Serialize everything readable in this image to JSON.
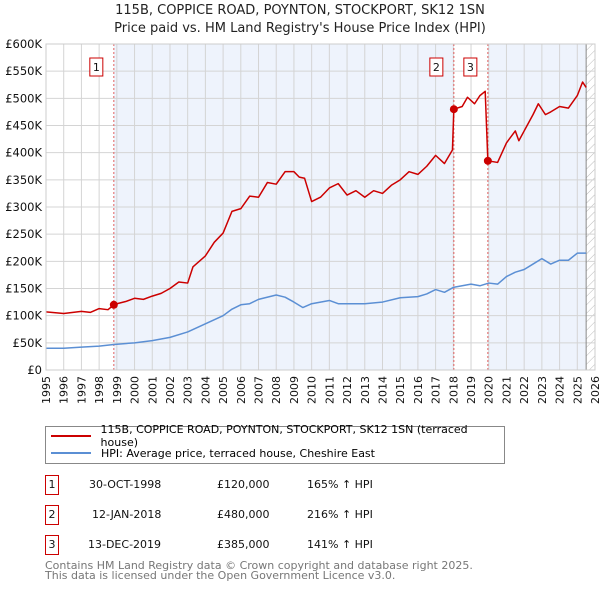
{
  "title": "115B, COPPICE ROAD, POYNTON, STOCKPORT, SK12 1SN",
  "subtitle": "Price paid vs. HM Land Registry's House Price Index (HPI)",
  "chart_data": {
    "type": "line",
    "title": "115B, COPPICE ROAD, POYNTON, STOCKPORT, SK12 1SN",
    "subtitle": "Price paid vs. HM Land Registry's House Price Index (HPI)",
    "xlim": [
      1995,
      2026
    ],
    "ylim": [
      0,
      600000
    ],
    "x_ticks": [
      "1995",
      "1996",
      "1997",
      "1998",
      "1999",
      "2000",
      "2001",
      "2002",
      "2003",
      "2004",
      "2005",
      "2006",
      "2007",
      "2008",
      "2009",
      "2010",
      "2011",
      "2012",
      "2013",
      "2014",
      "2015",
      "2016",
      "2017",
      "2018",
      "2019",
      "2020",
      "2021",
      "2022",
      "2023",
      "2024",
      "2025",
      "2026"
    ],
    "y_ticks": [
      "£0",
      "£50K",
      "£100K",
      "£150K",
      "£200K",
      "£250K",
      "£300K",
      "£350K",
      "£400K",
      "£450K",
      "£500K",
      "£550K",
      "£600K"
    ],
    "grid": true,
    "colors": {
      "property": "#cc0000",
      "hpi": "#5b8fd4",
      "shade": "#eef3fc"
    },
    "series": [
      {
        "name": "115B, COPPICE ROAD, POYNTON, STOCKPORT, SK12 1SN (terraced house)",
        "x": [
          1995,
          1996,
          1997,
          1997.5,
          1998,
          1998.5,
          1998.83,
          1999,
          1999.5,
          2000,
          2000.5,
          2001,
          2001.5,
          2002,
          2002.5,
          2003,
          2003.3,
          2004,
          2004.5,
          2005,
          2005.5,
          2006,
          2006.5,
          2007,
          2007.5,
          2008,
          2008.5,
          2009,
          2009.3,
          2009.6,
          2010,
          2010.5,
          2011,
          2011.5,
          2012,
          2012.5,
          2013,
          2013.5,
          2014,
          2014.5,
          2015,
          2015.5,
          2016,
          2016.5,
          2017,
          2017.5,
          2017.95,
          2018.03,
          2018.5,
          2018.8,
          2019.2,
          2019.5,
          2019.8,
          2019.95,
          2020.5,
          2021,
          2021.5,
          2021.7,
          2022,
          2022.5,
          2022.8,
          2023.2,
          2023.5,
          2024,
          2024.5,
          2025,
          2025.3,
          2025.5
        ],
        "values": [
          107000,
          104000,
          108000,
          106000,
          113000,
          111000,
          120000,
          122000,
          126000,
          132000,
          130000,
          136000,
          141000,
          150000,
          162000,
          160000,
          190000,
          210000,
          235000,
          252000,
          292000,
          297000,
          320000,
          318000,
          345000,
          342000,
          365000,
          365000,
          355000,
          353000,
          310000,
          318000,
          335000,
          343000,
          322000,
          330000,
          318000,
          330000,
          325000,
          340000,
          350000,
          365000,
          360000,
          375000,
          395000,
          380000,
          405000,
          480000,
          485000,
          502000,
          490000,
          505000,
          513000,
          385000,
          382000,
          418000,
          440000,
          422000,
          440000,
          470000,
          490000,
          470000,
          475000,
          485000,
          482000,
          505000,
          530000,
          520000
        ]
      },
      {
        "name": "HPI: Average price, terraced house, Cheshire East",
        "x": [
          1995,
          1996,
          1997,
          1998,
          1998.83,
          2000,
          2001,
          2002,
          2003,
          2004,
          2005,
          2005.5,
          2006,
          2006.5,
          2007,
          2008,
          2008.5,
          2009,
          2009.5,
          2010,
          2011,
          2011.5,
          2012,
          2013,
          2014,
          2015,
          2016,
          2016.5,
          2017,
          2017.5,
          2018,
          2019,
          2019.5,
          2020,
          2020.5,
          2021,
          2021.5,
          2022,
          2022.5,
          2023,
          2023.5,
          2024,
          2024.5,
          2025,
          2025.5
        ],
        "values": [
          40000,
          40000,
          42000,
          44000,
          47000,
          50000,
          54000,
          60000,
          70000,
          85000,
          100000,
          112000,
          120000,
          122000,
          130000,
          138000,
          134000,
          125000,
          115000,
          122000,
          128000,
          122000,
          122000,
          122000,
          125000,
          133000,
          135000,
          140000,
          148000,
          143000,
          152000,
          158000,
          155000,
          160000,
          158000,
          172000,
          180000,
          185000,
          195000,
          205000,
          195000,
          202000,
          202000,
          215000,
          215000
        ]
      }
    ],
    "sales": [
      {
        "label": "1",
        "x": 1998.83,
        "value": 120000,
        "date": "30-OCT-1998",
        "price": "£120,000",
        "hpi": "165% ↑ HPI"
      },
      {
        "label": "2",
        "x": 2018.03,
        "value": 480000,
        "date": "12-JAN-2018",
        "price": "£480,000",
        "hpi": "216% ↑ HPI"
      },
      {
        "label": "3",
        "x": 2019.95,
        "value": 385000,
        "date": "13-DEC-2019",
        "price": "£385,000",
        "hpi": "141% ↑ HPI"
      }
    ],
    "shaded_ranges": [
      [
        1998.83,
        2018.03
      ],
      [
        2019.95,
        2025.5
      ]
    ],
    "forecast_start": 2025.5,
    "legend_position": "below"
  },
  "legend": [
    "115B, COPPICE ROAD, POYNTON, STOCKPORT, SK12 1SN (terraced house)",
    "HPI: Average price, terraced house, Cheshire East"
  ],
  "footer": [
    "Contains HM Land Registry data © Crown copyright and database right 2025.",
    "This data is licensed under the Open Government Licence v3.0."
  ]
}
